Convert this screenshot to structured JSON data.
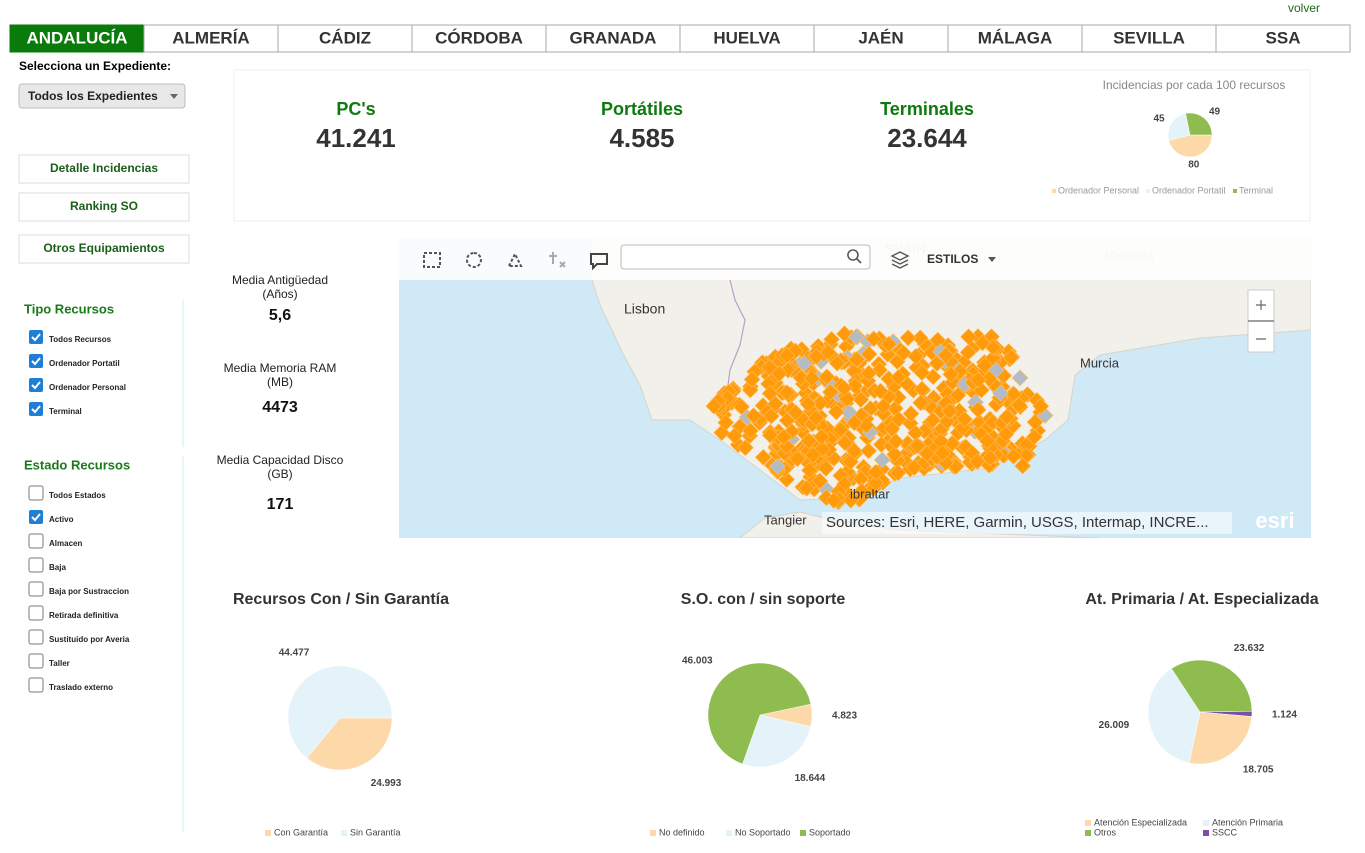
{
  "header": {
    "link": "volver"
  },
  "tabs": {
    "items": [
      "ANDALUCÍA",
      "ALMERÍA",
      "CÁDIZ",
      "CÓRDOBA",
      "GRANADA",
      "HUELVA",
      "JAÉN",
      "MÁLAGA",
      "SEVILLA",
      "SSA"
    ],
    "active": 0
  },
  "sidebar": {
    "expediente_label": "Selecciona un Expediente:",
    "expediente_select": "Todos los Expedientes",
    "buttons": [
      "Detalle Incidencias",
      "Ranking SO",
      "Otros Equipamientos"
    ],
    "tipo": {
      "title": "Tipo Recursos",
      "items": [
        {
          "label": "Todos Recursos",
          "checked": true
        },
        {
          "label": "Ordenador Portatil",
          "checked": true
        },
        {
          "label": "Ordenador Personal",
          "checked": true
        },
        {
          "label": "Terminal",
          "checked": true
        }
      ]
    },
    "estado": {
      "title": "Estado Recursos",
      "items": [
        {
          "label": "Todos Estados",
          "checked": false
        },
        {
          "label": "Activo",
          "checked": true
        },
        {
          "label": "Almacen",
          "checked": false
        },
        {
          "label": "Baja",
          "checked": false
        },
        {
          "label": "Baja por Sustraccion",
          "checked": false
        },
        {
          "label": "Retirada definitiva",
          "checked": false
        },
        {
          "label": "Sustituido por Averia",
          "checked": false
        },
        {
          "label": "Taller",
          "checked": false
        },
        {
          "label": "Traslado externo",
          "checked": false
        }
      ]
    }
  },
  "kpis": [
    {
      "label": "PC's",
      "value": "41.241"
    },
    {
      "label": "Portátiles",
      "value": "4.585"
    },
    {
      "label": "Terminales",
      "value": "23.644"
    }
  ],
  "incidencias": {
    "type": "pie",
    "title": "Incidencias por cada 100 recursos",
    "categories": [
      "Ordenador Personal",
      "Ordenador Portatil",
      "Terminal"
    ],
    "values": [
      80,
      45,
      49
    ],
    "colors": [
      "#fdd8a8",
      "#e4f3f9",
      "#8fbc4e"
    ]
  },
  "stats": [
    {
      "label": "Media Antigüedad",
      "unit": "(Años)",
      "value": "5,6"
    },
    {
      "label": "Media Memoria RAM",
      "unit": "(MB)",
      "value": "4473"
    },
    {
      "label": "Media Capacidad Disco",
      "unit": "(GB)",
      "value": "171"
    }
  ],
  "map": {
    "toolbar": "ESTILOS",
    "places": [
      "Lisbon",
      "Murcia",
      "Tangier",
      "ibraltar",
      "Valencia",
      "SPAIN"
    ],
    "attribution": "Sources: Esri, HERE, Garmin, USGS, Intermap, INCRE...",
    "logo": "esri"
  },
  "charts": [
    {
      "type": "pie",
      "title": "Recursos Con / Sin Garantía",
      "categories": [
        "Con Garantía",
        "Sin Garantía"
      ],
      "values": [
        24993,
        44477
      ],
      "value_labels": [
        "24.993",
        "44.477"
      ],
      "colors": [
        "#fdd8a8",
        "#e4f3f9"
      ]
    },
    {
      "type": "pie",
      "title": "S.O. con / sin soporte",
      "categories": [
        "No definido",
        "No Soportado",
        "Soportado"
      ],
      "values": [
        4823,
        18644,
        46003
      ],
      "value_labels": [
        "4.823",
        "18.644",
        "46.003"
      ],
      "colors": [
        "#fdd8a8",
        "#e4f3f9",
        "#8fbc4e"
      ]
    },
    {
      "type": "pie",
      "title": "At. Primaria / At. Especializada",
      "categories": [
        "Atención Especializada",
        "Atención Primaria",
        "Otros",
        "SSCC"
      ],
      "values": [
        18705,
        26009,
        23632,
        1124
      ],
      "value_labels": [
        "18.705",
        "26.009",
        "23.632",
        "1.124"
      ],
      "colors": [
        "#fdd8a8",
        "#e4f3f9",
        "#8fbc4e",
        "#7b4fa6"
      ]
    }
  ]
}
